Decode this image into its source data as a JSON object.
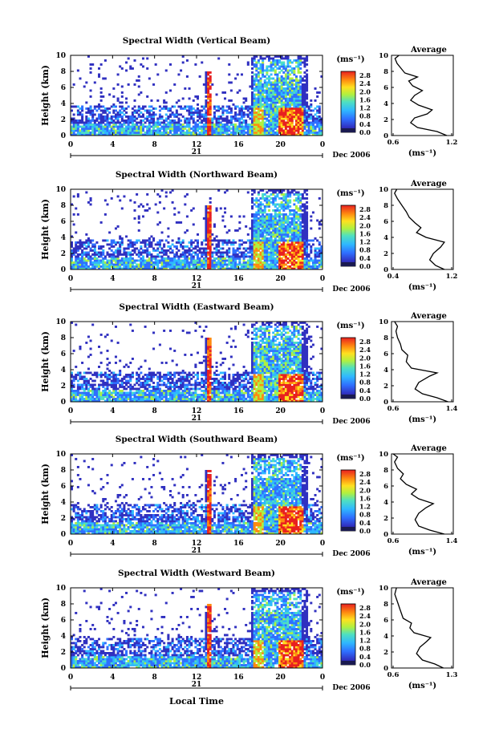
{
  "figure": {
    "xlabel": "Local Time",
    "date_label": "Dec 2006",
    "day_label": "21",
    "colorbar_unit": "(ms⁻¹)",
    "colorbar_ticks": [
      "2.8",
      "2.4",
      "2.0",
      "1.6",
      "1.2",
      "0.8",
      "0.4",
      "0.0"
    ],
    "average_title": "Average",
    "average_xlabel": "(ms⁻¹)",
    "ylabel": "Height (km)"
  },
  "chart_data": [
    {
      "type": "heatmap",
      "title": "Spectral Width (Vertical Beam)",
      "xlabel": "Local Time",
      "ylabel": "Height (km)",
      "x_ticks": [
        "0",
        "4",
        "8",
        "12",
        "16",
        "20",
        "0"
      ],
      "y_ticks": [
        "10",
        "8",
        "6",
        "4",
        "2",
        "0"
      ],
      "xlim": [
        0,
        24
      ],
      "ylim": [
        0,
        10
      ],
      "colorbar": {
        "unit": "(ms⁻¹)",
        "range": [
          0.0,
          2.8
        ]
      },
      "average_profile": {
        "title": "Average",
        "xlabel": "(ms⁻¹)",
        "x_ticks": [
          "0.6",
          "1.2"
        ],
        "xlim": [
          0.6,
          1.2
        ],
        "points": [
          [
            1.15,
            0
          ],
          [
            1.05,
            0.5
          ],
          [
            0.85,
            1.0
          ],
          [
            0.78,
            1.6
          ],
          [
            0.82,
            2.2
          ],
          [
            0.95,
            2.7
          ],
          [
            1.0,
            3.2
          ],
          [
            0.86,
            3.8
          ],
          [
            0.78,
            4.4
          ],
          [
            0.82,
            5.0
          ],
          [
            0.9,
            5.6
          ],
          [
            0.8,
            6.2
          ],
          [
            0.76,
            6.8
          ],
          [
            0.85,
            7.3
          ],
          [
            0.72,
            7.8
          ],
          [
            0.68,
            8.4
          ],
          [
            0.64,
            9.0
          ],
          [
            0.62,
            9.6
          ],
          [
            0.66,
            10
          ]
        ]
      }
    },
    {
      "type": "heatmap",
      "title": "Spectral Width (Northward Beam)",
      "xlabel": "Local Time",
      "ylabel": "Height (km)",
      "x_ticks": [
        "0",
        "4",
        "8",
        "12",
        "16",
        "20",
        "0"
      ],
      "y_ticks": [
        "10",
        "8",
        "6",
        "4",
        "2",
        "0"
      ],
      "xlim": [
        0,
        24
      ],
      "ylim": [
        0,
        10
      ],
      "colorbar": {
        "unit": "(ms⁻¹)",
        "range": [
          0.0,
          2.8
        ]
      },
      "average_profile": {
        "title": "Average",
        "xlabel": "(ms⁻¹)",
        "x_ticks": [
          "0.4",
          "1.2"
        ],
        "xlim": [
          0.4,
          1.2
        ],
        "points": [
          [
            1.1,
            0
          ],
          [
            0.98,
            0.5
          ],
          [
            0.9,
            1.2
          ],
          [
            0.95,
            2.0
          ],
          [
            1.05,
            2.8
          ],
          [
            1.1,
            3.4
          ],
          [
            0.85,
            4.0
          ],
          [
            0.72,
            4.6
          ],
          [
            0.78,
            5.2
          ],
          [
            0.7,
            5.8
          ],
          [
            0.62,
            6.5
          ],
          [
            0.58,
            7.2
          ],
          [
            0.52,
            8.0
          ],
          [
            0.46,
            8.8
          ],
          [
            0.42,
            9.5
          ],
          [
            0.45,
            10
          ]
        ]
      }
    },
    {
      "type": "heatmap",
      "title": "Spectral Width (Eastward Beam)",
      "xlabel": "Local Time",
      "ylabel": "Height (km)",
      "x_ticks": [
        "0",
        "4",
        "8",
        "12",
        "16",
        "20",
        "0"
      ],
      "y_ticks": [
        "10",
        "8",
        "6",
        "4",
        "2",
        "0"
      ],
      "xlim": [
        0,
        24
      ],
      "ylim": [
        0,
        10
      ],
      "colorbar": {
        "unit": "(ms⁻¹)",
        "range": [
          0.0,
          2.8
        ]
      },
      "average_profile": {
        "title": "Average",
        "xlabel": "(ms⁻¹)",
        "x_ticks": [
          "0.6",
          "1.4"
        ],
        "xlim": [
          0.6,
          1.4
        ],
        "points": [
          [
            1.35,
            0
          ],
          [
            1.2,
            0.5
          ],
          [
            1.0,
            1.0
          ],
          [
            0.9,
            1.6
          ],
          [
            0.95,
            2.4
          ],
          [
            1.1,
            3.2
          ],
          [
            1.2,
            3.6
          ],
          [
            0.85,
            4.2
          ],
          [
            0.78,
            5.0
          ],
          [
            0.8,
            5.8
          ],
          [
            0.72,
            6.5
          ],
          [
            0.7,
            7.2
          ],
          [
            0.66,
            8.0
          ],
          [
            0.64,
            8.8
          ],
          [
            0.66,
            9.4
          ],
          [
            0.62,
            10
          ]
        ]
      }
    },
    {
      "type": "heatmap",
      "title": "Spectral Width (Southward Beam)",
      "xlabel": "Local Time",
      "ylabel": "Height (km)",
      "x_ticks": [
        "0",
        "4",
        "8",
        "12",
        "16",
        "20",
        "0"
      ],
      "y_ticks": [
        "10",
        "8",
        "6",
        "4",
        "2",
        "0"
      ],
      "xlim": [
        0,
        24
      ],
      "ylim": [
        0,
        10
      ],
      "colorbar": {
        "unit": "(ms⁻¹)",
        "range": [
          0.0,
          2.8
        ]
      },
      "average_profile": {
        "title": "Average",
        "xlabel": "(ms⁻¹)",
        "x_ticks": [
          "0.6",
          "1.4"
        ],
        "xlim": [
          0.6,
          1.4
        ],
        "points": [
          [
            1.3,
            0
          ],
          [
            1.1,
            0.5
          ],
          [
            0.95,
            1.0
          ],
          [
            0.9,
            1.8
          ],
          [
            0.95,
            2.6
          ],
          [
            1.05,
            3.3
          ],
          [
            1.15,
            3.8
          ],
          [
            0.95,
            4.4
          ],
          [
            0.85,
            5.0
          ],
          [
            0.92,
            5.6
          ],
          [
            0.78,
            6.2
          ],
          [
            0.7,
            6.9
          ],
          [
            0.74,
            7.5
          ],
          [
            0.66,
            8.2
          ],
          [
            0.62,
            9.0
          ],
          [
            0.66,
            9.6
          ],
          [
            0.6,
            10
          ]
        ]
      }
    },
    {
      "type": "heatmap",
      "title": "Spectral Width (Westward Beam)",
      "xlabel": "Local Time",
      "ylabel": "Height (km)",
      "x_ticks": [
        "0",
        "4",
        "8",
        "12",
        "16",
        "20",
        "0"
      ],
      "y_ticks": [
        "10",
        "8",
        "6",
        "4",
        "2",
        "0"
      ],
      "xlim": [
        0,
        24
      ],
      "ylim": [
        0,
        10
      ],
      "colorbar": {
        "unit": "(ms⁻¹)",
        "range": [
          0.0,
          2.8
        ]
      },
      "average_profile": {
        "title": "Average",
        "xlabel": "(ms⁻¹)",
        "x_ticks": [
          "0.6",
          "1.3"
        ],
        "xlim": [
          0.6,
          1.3
        ],
        "points": [
          [
            1.2,
            0
          ],
          [
            1.1,
            0.5
          ],
          [
            0.95,
            1.0
          ],
          [
            0.88,
            1.8
          ],
          [
            0.92,
            2.6
          ],
          [
            1.0,
            3.3
          ],
          [
            1.05,
            3.8
          ],
          [
            0.85,
            4.4
          ],
          [
            0.8,
            5.0
          ],
          [
            0.82,
            5.6
          ],
          [
            0.72,
            6.2
          ],
          [
            0.7,
            6.8
          ],
          [
            0.68,
            7.4
          ],
          [
            0.66,
            8.0
          ],
          [
            0.64,
            8.6
          ],
          [
            0.62,
            9.2
          ],
          [
            0.64,
            10
          ]
        ]
      }
    }
  ]
}
